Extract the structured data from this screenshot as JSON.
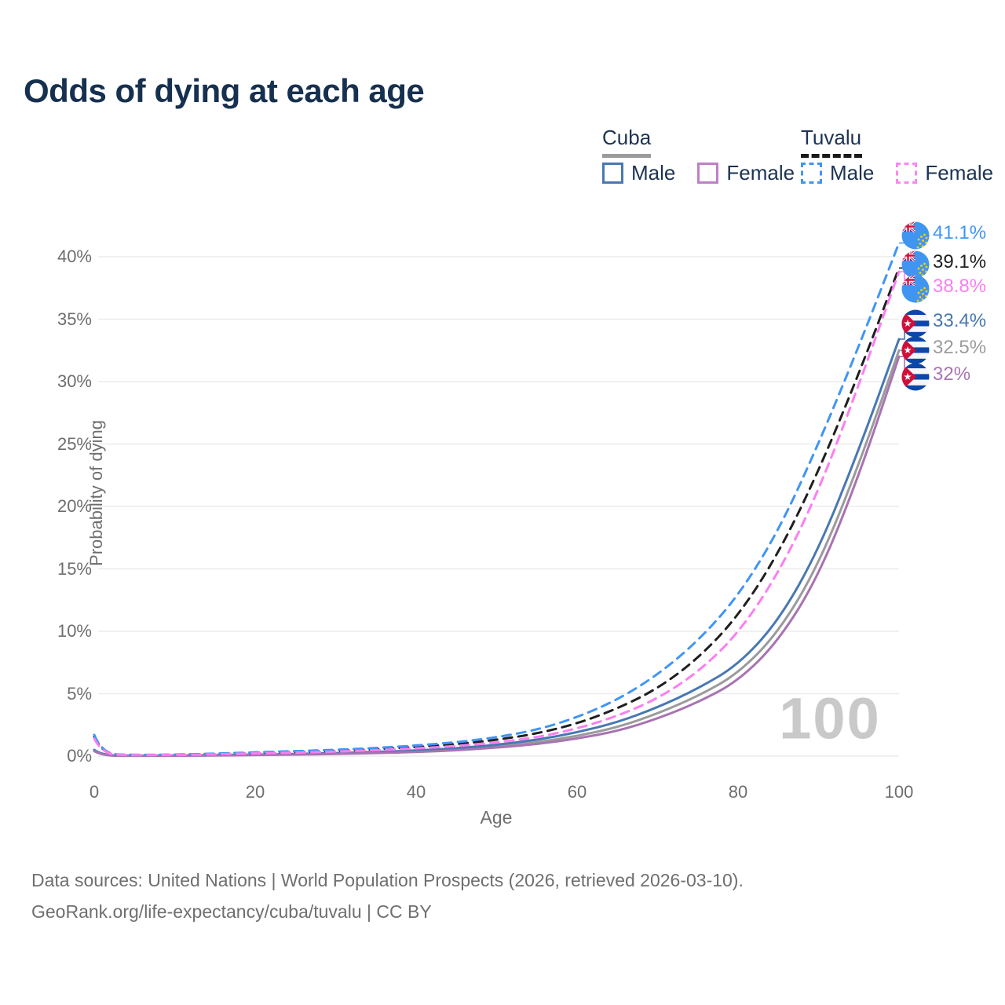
{
  "title": "Odds of dying at each age",
  "legend": {
    "groups": [
      {
        "country": "Cuba",
        "underline_color": "#9b9b9b",
        "underline_dashed": false,
        "items": [
          {
            "label": "Male",
            "box_color": "#4878b2",
            "dashed": false
          },
          {
            "label": "Female",
            "box_color": "#bf7fc7",
            "dashed": false
          }
        ]
      },
      {
        "country": "Tuvalu",
        "underline_color": "#1a1a1a",
        "underline_dashed": true,
        "items": [
          {
            "label": "Male",
            "box_color": "#4095f5",
            "dashed": true
          },
          {
            "label": "Female",
            "box_color": "#fd86f3",
            "dashed": true
          }
        ]
      }
    ]
  },
  "chart_data": {
    "type": "line",
    "title": "Odds of dying at each age",
    "xlabel": "Age",
    "ylabel": "Probability of dying",
    "x_ticks": [
      0,
      20,
      40,
      60,
      80,
      100
    ],
    "y_ticks": [
      "0%",
      "5%",
      "10%",
      "15%",
      "20%",
      "25%",
      "30%",
      "35%",
      "40%"
    ],
    "xlim": [
      0,
      100
    ],
    "ylim_percent": [
      0,
      42
    ],
    "grid": "horizontal",
    "legend_position": "top-right",
    "watermark": "100",
    "x": [
      0,
      1,
      5,
      10,
      15,
      20,
      25,
      30,
      35,
      40,
      45,
      50,
      55,
      60,
      65,
      70,
      75,
      80,
      85,
      90,
      95,
      100
    ],
    "series": [
      {
        "name": "Cuba Both sexes",
        "country": "Cuba",
        "sex": "Both",
        "color": "#9b9b9b",
        "dashed": false,
        "flag": "cuba",
        "end_label": "32.5%",
        "end_value": 32.5,
        "values": [
          0.45,
          0.04,
          0.03,
          0.035,
          0.06,
          0.1,
          0.14,
          0.2,
          0.28,
          0.38,
          0.53,
          0.78,
          1.1,
          1.6,
          2.3,
          3.4,
          4.8,
          6.6,
          9.9,
          15.3,
          23.3,
          32.5
        ]
      },
      {
        "name": "Cuba Male",
        "country": "Cuba",
        "sex": "Male",
        "color": "#4878b2",
        "dashed": false,
        "flag": "cuba",
        "end_label": "33.4%",
        "end_value": 33.4,
        "values": [
          0.5,
          0.05,
          0.03,
          0.04,
          0.08,
          0.12,
          0.17,
          0.24,
          0.33,
          0.45,
          0.62,
          0.9,
          1.3,
          1.9,
          2.7,
          3.9,
          5.4,
          7.3,
          10.8,
          16.5,
          24.5,
          33.4
        ]
      },
      {
        "name": "Cuba Female",
        "country": "Cuba",
        "sex": "Female",
        "color": "#a873b2",
        "dashed": false,
        "flag": "cuba",
        "end_label": "32%",
        "end_value": 32.0,
        "values": [
          0.4,
          0.03,
          0.02,
          0.03,
          0.05,
          0.08,
          0.12,
          0.17,
          0.24,
          0.33,
          0.46,
          0.68,
          0.95,
          1.4,
          2.0,
          3.0,
          4.3,
          6.0,
          9.2,
          14.4,
          22.4,
          32.0
        ]
      },
      {
        "name": "Tuvalu Both sexes",
        "country": "Tuvalu",
        "sex": "Both",
        "color": "#1f1f1f",
        "dashed": true,
        "flag": "tuvalu",
        "end_label": "39.1%",
        "end_value": 39.1,
        "values": [
          1.55,
          0.13,
          0.09,
          0.1,
          0.17,
          0.25,
          0.33,
          0.42,
          0.55,
          0.72,
          0.95,
          1.3,
          1.8,
          2.6,
          3.8,
          5.4,
          7.8,
          11.2,
          16.2,
          22.8,
          30.6,
          39.1
        ]
      },
      {
        "name": "Tuvalu Male",
        "country": "Tuvalu",
        "sex": "Male",
        "color": "#4095f5",
        "dashed": true,
        "flag": "tuvalu",
        "end_label": "41.1%",
        "end_value": 41.1,
        "values": [
          1.7,
          0.15,
          0.1,
          0.12,
          0.2,
          0.3,
          0.4,
          0.5,
          0.65,
          0.85,
          1.1,
          1.5,
          2.1,
          3.1,
          4.5,
          6.5,
          9.2,
          12.8,
          18.0,
          25.0,
          32.8,
          41.1
        ]
      },
      {
        "name": "Tuvalu Female",
        "country": "Tuvalu",
        "sex": "Female",
        "color": "#fb7ef2",
        "dashed": true,
        "flag": "tuvalu",
        "end_label": "38.8%",
        "end_value": 38.8,
        "values": [
          1.4,
          0.12,
          0.08,
          0.09,
          0.14,
          0.22,
          0.28,
          0.36,
          0.47,
          0.62,
          0.8,
          1.1,
          1.5,
          2.2,
          3.2,
          4.6,
          6.7,
          9.8,
          14.6,
          21.2,
          29.7,
          38.8
        ]
      }
    ]
  },
  "footer": {
    "line1": "Data sources: United Nations | World Population Prospects (2026, retrieved 2026-03-10).",
    "line2": "GeoRank.org/life-expectancy/cuba/tuvalu | CC BY"
  }
}
